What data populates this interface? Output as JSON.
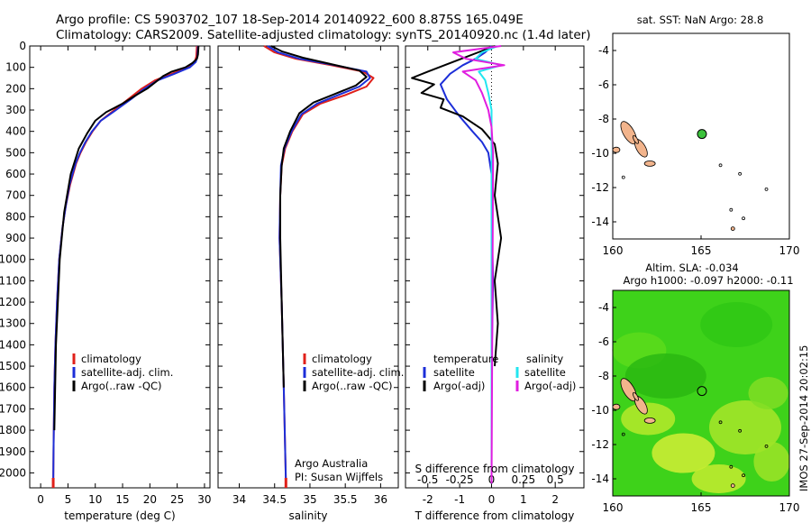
{
  "header": {
    "line1": "Argo profile: CS 5903702_107 18-Sep-2014 20140922_600 8.875S 165.049E",
    "line2": "Climatology: CARS2009. Satellite-adjusted climatology: synTS_20140920.nc (1.4d later)"
  },
  "side_label": "IMOS 27-Sep-2014 20:02:15",
  "credits": [
    "Argo Australia",
    "PI: Susan Wijffels"
  ],
  "colors": {
    "climatology": "#e0201a",
    "satellite": "#1c2ed8",
    "argo": "#000000",
    "sal_satellite": "#22e6f0",
    "sal_argo": "#e01ee0",
    "land": "#f2b48c",
    "float": "#3cc23c"
  },
  "chart_data": [
    {
      "type": "line",
      "xlabel": "temperature (deg C)",
      "ylabel": "",
      "xlim": [
        -2,
        31
      ],
      "ylim": [
        2070,
        0
      ],
      "xticks": [
        0,
        5,
        10,
        15,
        20,
        25,
        30
      ],
      "yticks": [
        0,
        100,
        200,
        300,
        400,
        500,
        600,
        700,
        800,
        900,
        1000,
        1100,
        1200,
        1300,
        1400,
        1500,
        1600,
        1700,
        1800,
        1900,
        2000
      ],
      "legend": [
        "climatology",
        "satellite-adj. clim.",
        "Argo(..raw -QC)"
      ],
      "series": [
        {
          "name": "climatology",
          "color": "#e0201a",
          "x": [
            28.6,
            28.5,
            28.2,
            27.0,
            24.0,
            21.0,
            18.5,
            16.0,
            13.5,
            11.0,
            9.5,
            8.3,
            7.3,
            6.5,
            5.4,
            4.6,
            4.0,
            3.4,
            3.0,
            2.7,
            2.5,
            2.35,
            2.3
          ],
          "y": [
            0,
            50,
            75,
            100,
            130,
            160,
            200,
            250,
            300,
            350,
            400,
            450,
            500,
            550,
            650,
            750,
            850,
            1000,
            1200,
            1400,
            1600,
            1900,
            2050
          ]
        },
        {
          "name": "satellite-adj. clim.",
          "color": "#1c2ed8",
          "x": [
            28.8,
            28.7,
            28.4,
            27.3,
            24.5,
            21.5,
            19.0,
            16.5,
            13.8,
            11.0,
            9.4,
            8.2,
            7.2,
            6.4,
            5.3,
            4.6,
            4.0,
            3.4,
            3.0,
            2.7,
            2.5,
            2.35,
            2.3
          ],
          "y": [
            0,
            50,
            75,
            100,
            130,
            160,
            200,
            250,
            300,
            350,
            400,
            450,
            500,
            550,
            650,
            750,
            850,
            1000,
            1200,
            1400,
            1600,
            1900,
            2050
          ]
        },
        {
          "name": "Argo(..raw -QC)",
          "color": "#000000",
          "x": [
            28.9,
            28.8,
            28.6,
            27.8,
            26.5,
            24.0,
            22.5,
            21.0,
            19.5,
            17.5,
            15.0,
            12.0,
            10.0,
            8.5,
            7.0,
            5.5,
            4.3,
            3.5,
            2.8,
            2.5
          ],
          "y": [
            0,
            40,
            60,
            80,
            100,
            120,
            140,
            170,
            200,
            230,
            270,
            310,
            350,
            410,
            480,
            600,
            780,
            1000,
            1400,
            1800
          ]
        }
      ]
    },
    {
      "type": "line",
      "xlabel": "salinity",
      "xlim": [
        33.7,
        36.25
      ],
      "ylim": [
        2070,
        0
      ],
      "xticks": [
        34,
        34.5,
        35,
        35.5,
        36
      ],
      "legend": [
        "climatology",
        "satellite-adj. clim.",
        "Argo(..raw -QC)"
      ],
      "series": [
        {
          "name": "climatology",
          "color": "#e0201a",
          "x": [
            34.35,
            34.5,
            34.8,
            35.3,
            35.75,
            35.9,
            35.8,
            35.5,
            35.15,
            34.9,
            34.75,
            34.65,
            34.6,
            34.58,
            34.57,
            34.6,
            34.63,
            34.66
          ],
          "y": [
            0,
            30,
            60,
            90,
            120,
            150,
            190,
            230,
            270,
            320,
            400,
            480,
            560,
            700,
            900,
            1200,
            1600,
            2050
          ]
        },
        {
          "name": "satellite-adj. clim.",
          "color": "#1c2ed8",
          "x": [
            34.4,
            34.55,
            34.85,
            35.35,
            35.8,
            35.85,
            35.7,
            35.4,
            35.1,
            34.88,
            34.74,
            34.64,
            34.59,
            34.58,
            34.57,
            34.6,
            34.63,
            34.66
          ],
          "y": [
            0,
            30,
            60,
            90,
            120,
            150,
            190,
            230,
            270,
            320,
            400,
            480,
            560,
            700,
            900,
            1200,
            1600,
            2050
          ]
        },
        {
          "name": "Argo(..raw -QC)",
          "color": "#000000",
          "x": [
            34.45,
            34.6,
            34.9,
            35.3,
            35.7,
            35.8,
            35.65,
            35.35,
            35.05,
            34.85,
            34.72,
            34.63,
            34.6,
            34.58,
            34.58,
            34.6,
            34.63
          ],
          "y": [
            0,
            25,
            55,
            85,
            115,
            145,
            185,
            225,
            265,
            315,
            400,
            480,
            560,
            700,
            900,
            1200,
            1600
          ]
        }
      ]
    },
    {
      "type": "line",
      "xlabel": "T difference from climatology",
      "top_xlabel": "S difference from climatology",
      "xlim": [
        -2.7,
        2.9
      ],
      "ylim": [
        2070,
        0
      ],
      "xticks": [
        -2,
        -1,
        0,
        1,
        2
      ],
      "top_xticks": [
        "-0.5",
        "-0.25",
        "0",
        "0.25",
        "0.5"
      ],
      "top_xtick_pos": [
        -2,
        -1,
        0,
        1,
        2
      ],
      "legend_left_title": "temperature",
      "legend_right_title": "salinity",
      "legend": [
        "satellite",
        "Argo(-adj)",
        "satellite",
        "Argo(-adj)"
      ],
      "series": [
        {
          "name": "satellite",
          "color": "#1c2ed8",
          "x": [
            0,
            -0.2,
            -0.5,
            -0.9,
            -1.3,
            -1.6,
            -1.4,
            -1.0,
            -0.6,
            -0.3,
            -0.1,
            0,
            0,
            0.05,
            0,
            0
          ],
          "y": [
            0,
            30,
            60,
            90,
            130,
            180,
            250,
            330,
            400,
            450,
            500,
            600,
            800,
            1100,
            1500,
            2050
          ]
        },
        {
          "name": "Argo(-adj)",
          "color": "#000000",
          "x": [
            0.1,
            -0.6,
            -1.3,
            -2.0,
            -2.5,
            -1.8,
            -2.2,
            -1.5,
            -1.6,
            -0.9,
            -0.3,
            0.1,
            0.2,
            0.1,
            0.3,
            0.1,
            0.2,
            0.1
          ],
          "y": [
            0,
            40,
            80,
            120,
            150,
            180,
            220,
            250,
            290,
            330,
            390,
            460,
            550,
            700,
            900,
            1100,
            1300,
            1500
          ]
        },
        {
          "name": "satellite",
          "color": "#22e6f0",
          "x": [
            0.2,
            -0.3,
            -0.5,
            0.3,
            -0.4,
            -0.2,
            -0.1,
            0,
            0,
            0,
            0,
            0
          ],
          "y": [
            0,
            30,
            60,
            90,
            120,
            160,
            220,
            300,
            400,
            600,
            1100,
            2050
          ]
        },
        {
          "name": "Argo(-adj)",
          "color": "#e01ee0",
          "x": [
            0.3,
            -1.2,
            -0.8,
            0.4,
            -0.9,
            -0.5,
            -0.3,
            -0.1,
            0,
            0.05,
            0
          ],
          "y": [
            0,
            30,
            60,
            90,
            120,
            160,
            220,
            300,
            380,
            500,
            2050
          ]
        }
      ]
    },
    {
      "type": "map",
      "title": "sat. SST: NaN Argo: 28.8",
      "xlim": [
        160,
        170
      ],
      "ylim": [
        -15,
        -3
      ],
      "xticks": [
        160,
        165,
        170
      ],
      "yticks": [
        -4,
        -6,
        -8,
        -10,
        -12,
        -14
      ],
      "float": {
        "lon": 165.049,
        "lat": -8.875
      }
    },
    {
      "type": "heatmap",
      "title": "Altim. SLA: -0.034",
      "subtitle": "Argo h1000: -0.097 h2000: -0.11",
      "xlim": [
        160,
        170
      ],
      "ylim": [
        -15,
        -3
      ],
      "xticks": [
        160,
        165,
        170
      ],
      "yticks": [
        -4,
        -6,
        -8,
        -10,
        -12,
        -14
      ],
      "float": {
        "lon": 165.049,
        "lat": -8.875
      }
    }
  ]
}
